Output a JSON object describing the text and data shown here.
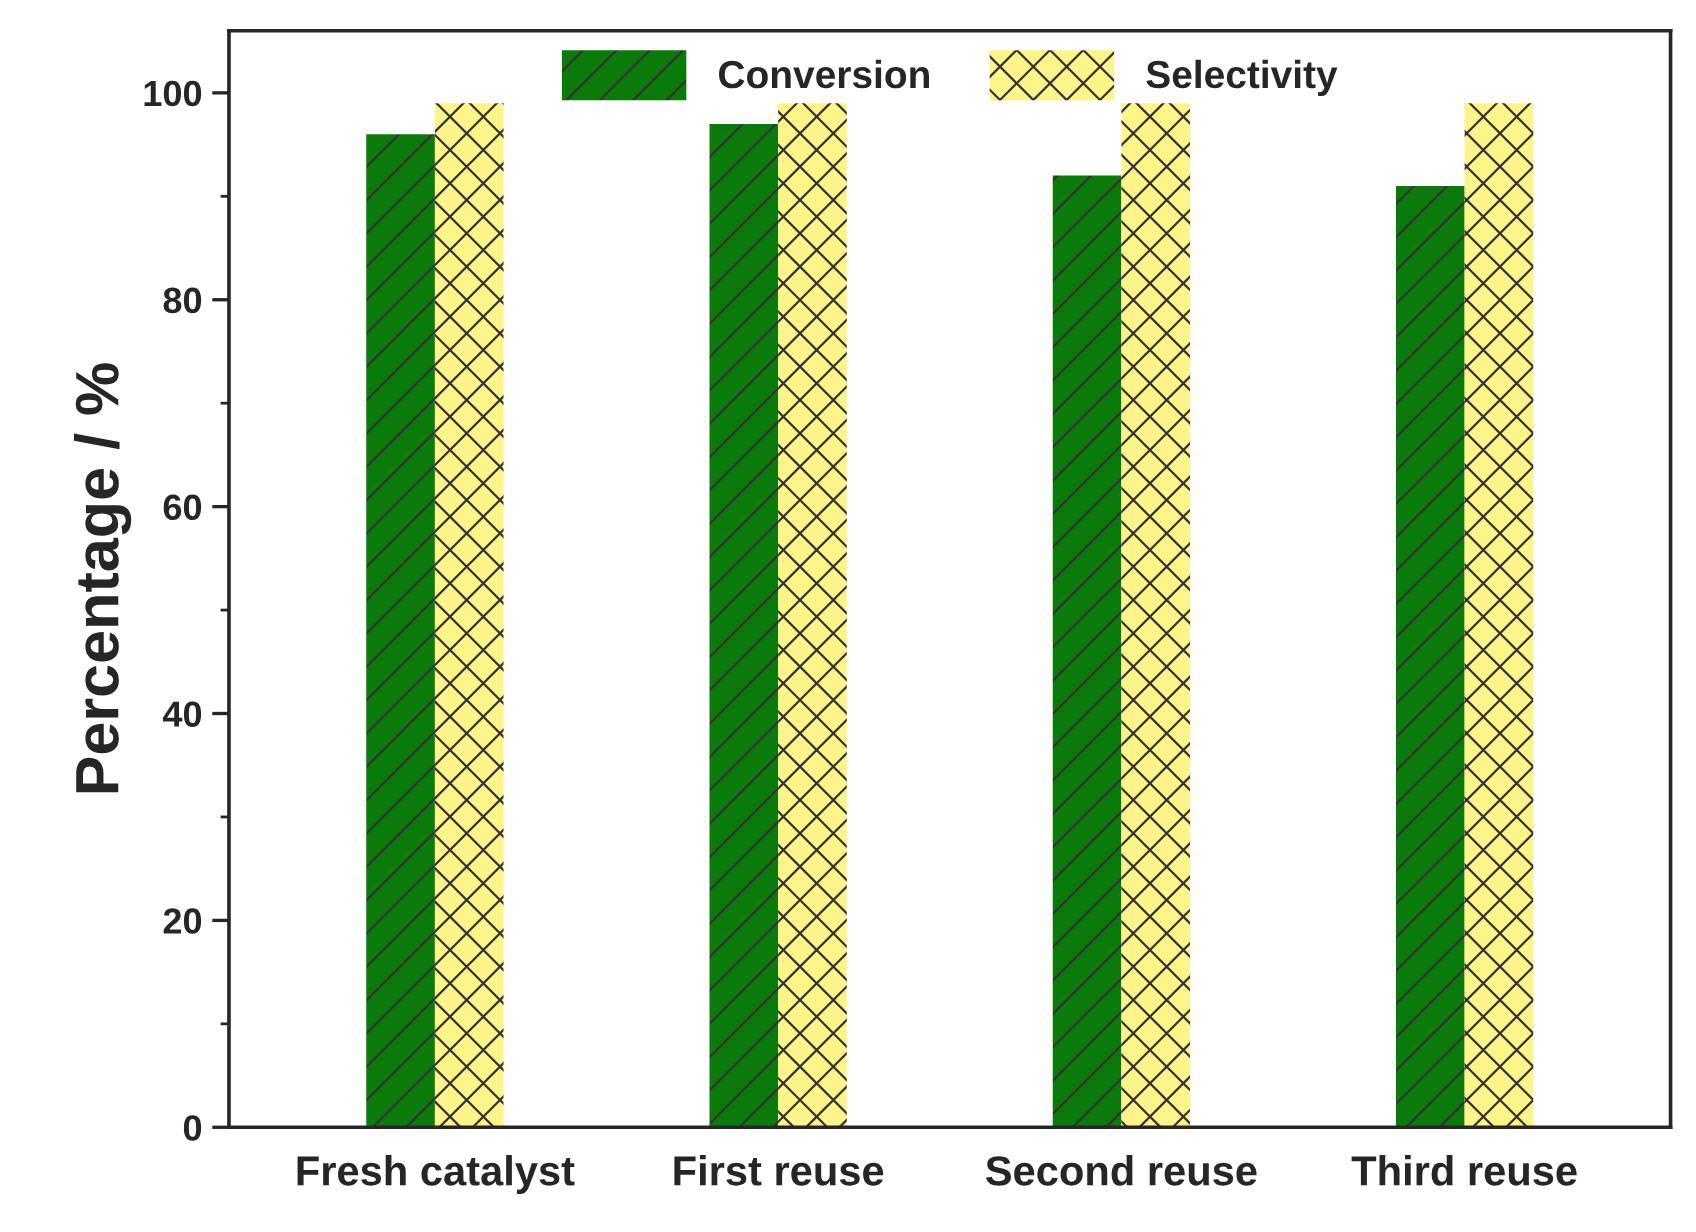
{
  "chart_data": {
    "type": "bar",
    "ylabel": "Percentage / %",
    "categories": [
      "Fresh catalyst",
      "First reuse",
      "Second reuse",
      "Third reuse"
    ],
    "series": [
      {
        "name": "Conversion",
        "color": "#0a7a0a",
        "values": [
          96,
          97,
          92,
          91
        ]
      },
      {
        "name": "Selectivity",
        "color": "#fdf58a",
        "values": [
          99,
          99,
          99,
          99
        ]
      }
    ],
    "ylim": [
      0,
      106
    ],
    "yticks": [
      0,
      20,
      40,
      60,
      80,
      100
    ],
    "grid": false,
    "legend": "top"
  }
}
